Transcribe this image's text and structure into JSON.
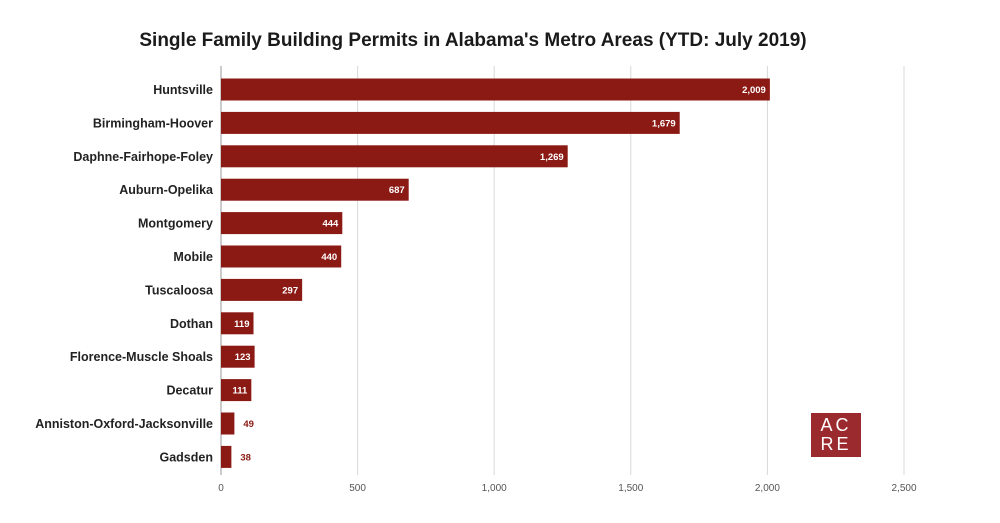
{
  "chart_data": {
    "type": "bar",
    "orientation": "horizontal",
    "title": "Single Family Building Permits in Alabama's Metro Areas (YTD: July 2019)",
    "categories": [
      "Huntsville",
      "Birmingham-Hoover",
      "Daphne-Fairhope-Foley",
      "Auburn-Opelika",
      "Montgomery",
      "Mobile",
      "Tuscaloosa",
      "Dothan",
      "Florence-Muscle Shoals",
      "Decatur",
      "Anniston-Oxford-Jacksonville",
      "Gadsden"
    ],
    "values": [
      2009,
      1679,
      1269,
      687,
      444,
      440,
      297,
      119,
      123,
      111,
      49,
      38
    ],
    "value_labels": [
      "2,009",
      "1,679",
      "1,269",
      "687",
      "444",
      "440",
      "297",
      "119",
      "123",
      "111",
      "49",
      "38"
    ],
    "xlim": [
      0,
      2500
    ],
    "xticks": [
      0,
      500,
      1000,
      1500,
      2000,
      2500
    ],
    "xtick_labels": [
      "0",
      "500",
      "1,000",
      "1,500",
      "2,000",
      "2,500"
    ],
    "xlabel": "",
    "ylabel": "",
    "grid": "vertical",
    "bar_color": "#8b1a14"
  },
  "logo": {
    "line1": "AC",
    "line2": "RE",
    "color": "#9b2a2e"
  }
}
